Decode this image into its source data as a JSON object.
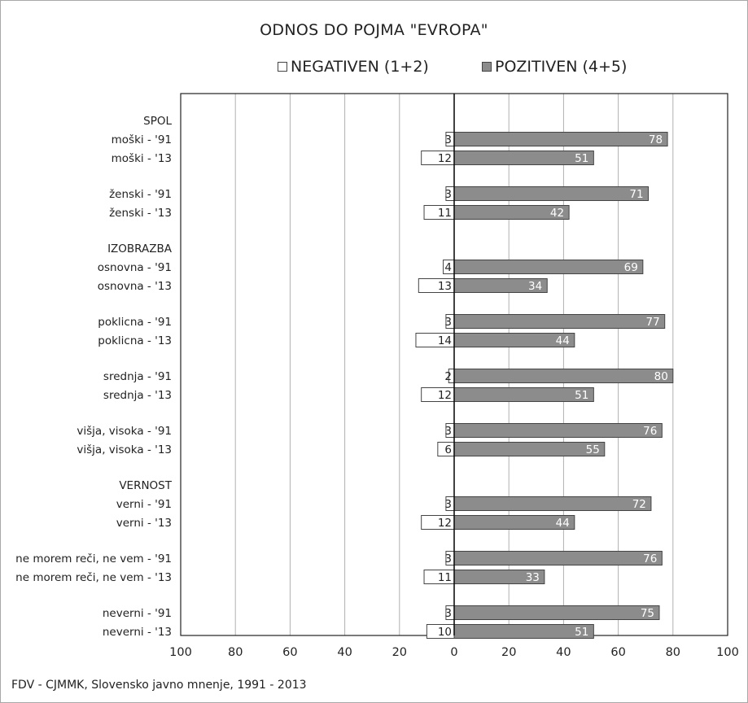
{
  "chart_data": {
    "type": "bar",
    "orientation": "horizontal",
    "title": "ODNOS DO POJMA \"EVROPA\"",
    "legend": {
      "placement": "top"
    },
    "series": [
      {
        "name": "NEGATIVEN (1+2)",
        "color": "#ffffff",
        "values": [
          3,
          12,
          3,
          11,
          4,
          13,
          3,
          14,
          2,
          12,
          3,
          6,
          3,
          12,
          3,
          11,
          3,
          10
        ]
      },
      {
        "name": "POZITIVEN (4+5)",
        "color": "#8c8c8c",
        "values": [
          78,
          51,
          71,
          42,
          69,
          34,
          77,
          44,
          80,
          51,
          76,
          55,
          72,
          44,
          76,
          33,
          75,
          51
        ]
      }
    ],
    "group_headers": [
      {
        "label": "SPOL",
        "before_index": 0
      },
      {
        "label": "IZOBRAZBA",
        "before_index": 4
      },
      {
        "label": "VERNOST",
        "before_index": 12
      }
    ],
    "categories": [
      "moški - '91",
      "moški - '13",
      "ženski - '91",
      "ženski - '13",
      "osnovna - '91",
      "osnovna - '13",
      "poklicna - '91",
      "poklicna - '13",
      "srednja - '91",
      "srednja - '13",
      "višja, visoka - '91",
      "višja, visoka - '13",
      "verni - '91",
      "verni - '13",
      "ne morem reči, ne vem - '91",
      "ne morem reči, ne vem - '13",
      "neverni - '91",
      "neverni - '13"
    ],
    "x_tick_labels": [
      "100",
      "80",
      "60",
      "40",
      "20",
      "0",
      "20",
      "40",
      "60",
      "80",
      "100"
    ],
    "xlim": [
      -100,
      100
    ],
    "grid": "vertical"
  },
  "source_note": "FDV - CJMMK, Slovensko javno mnenje, 1991 - 2013",
  "colors": {
    "positive": "#8c8c8c",
    "negative": "#ffffff",
    "border": "#444444",
    "grid": "#b0b0b0"
  }
}
